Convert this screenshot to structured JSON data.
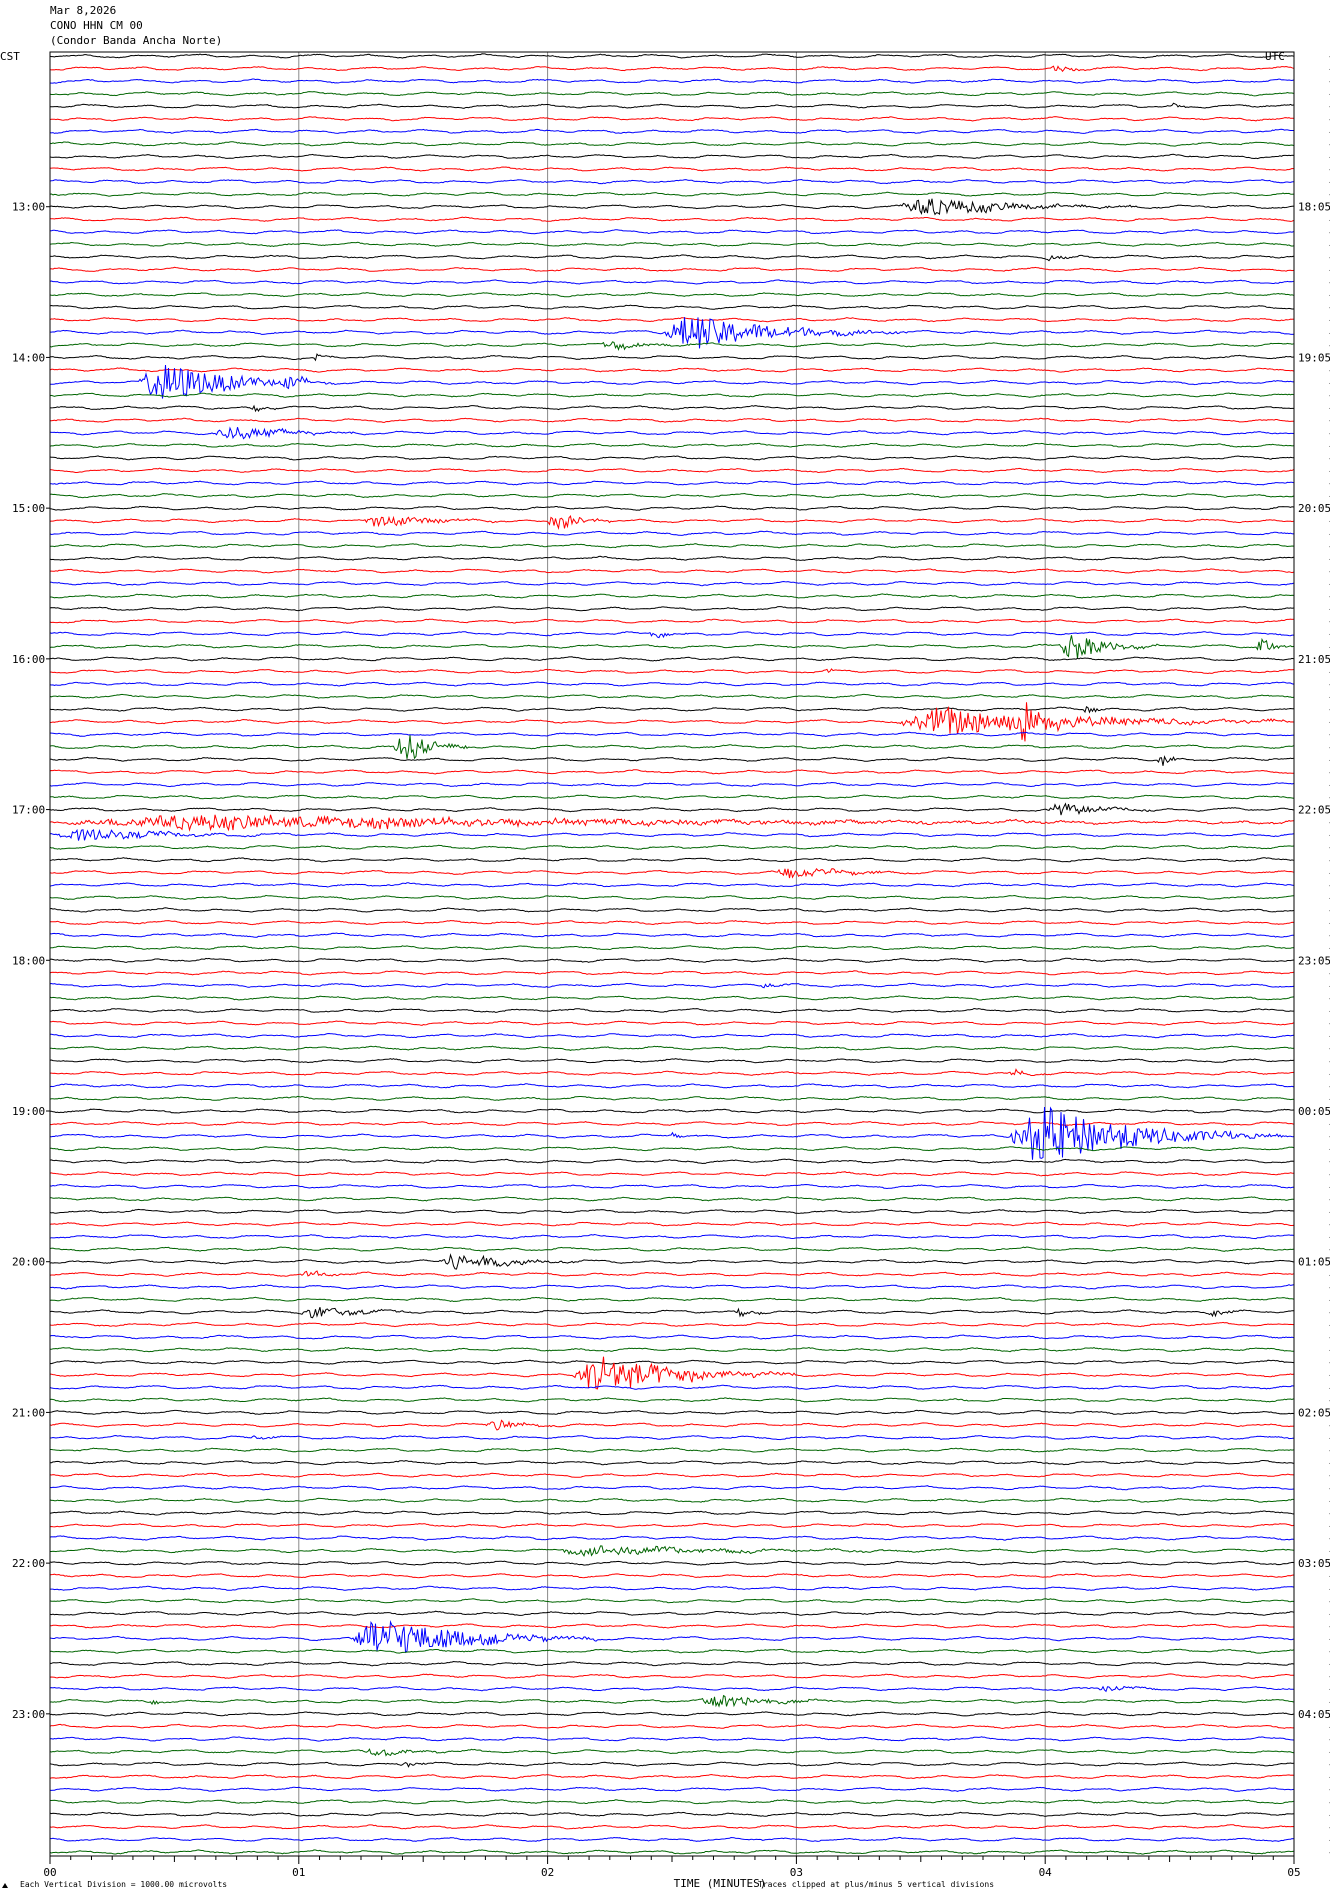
{
  "header": {
    "date": "Mar 8,2026",
    "station": "CONO HHN CM 00",
    "station_name": "(Condor Banda Ancha Norte)"
  },
  "left_zone": "CST",
  "right_zone": "UTC",
  "footer": {
    "xlabel": "TIME (MINUTES)",
    "scale_note": "Each Vertical Division = 1000.00 microvolts",
    "clip_note": "Traces clipped at plus/minus 5 vertical divisions"
  },
  "colors": {
    "cycle": [
      "#000000",
      "#ff0000",
      "#0000ff",
      "#006400"
    ],
    "grid": "#888888"
  },
  "chart_data": {
    "type": "line",
    "title": "CONO HHN CM 00",
    "xlabel": "TIME (MINUTES)",
    "xlim": [
      0,
      5
    ],
    "x_ticks": [
      "00",
      "01",
      "02",
      "03",
      "04",
      "05"
    ],
    "num_traces": 144,
    "trace_minutes": 5,
    "left_time_labels": [
      {
        "trace": 12,
        "label": "13:00"
      },
      {
        "trace": 24,
        "label": "14:00"
      },
      {
        "trace": 36,
        "label": "15:00"
      },
      {
        "trace": 48,
        "label": "16:00"
      },
      {
        "trace": 60,
        "label": "17:00"
      },
      {
        "trace": 72,
        "label": "18:00"
      },
      {
        "trace": 84,
        "label": "19:00"
      },
      {
        "trace": 96,
        "label": "20:00"
      },
      {
        "trace": 108,
        "label": "21:00"
      },
      {
        "trace": 120,
        "label": "22:00"
      },
      {
        "trace": 132,
        "label": "23:00"
      }
    ],
    "right_time_labels": [
      {
        "trace": 12,
        "label": "18:05"
      },
      {
        "trace": 24,
        "label": "19:05"
      },
      {
        "trace": 36,
        "label": "20:05"
      },
      {
        "trace": 48,
        "label": "21:05"
      },
      {
        "trace": 60,
        "label": "22:05"
      },
      {
        "trace": 72,
        "label": "23:05"
      },
      {
        "trace": 84,
        "label": "00:05"
      },
      {
        "trace": 96,
        "label": "01:05"
      },
      {
        "trace": 108,
        "label": "02:05"
      },
      {
        "trace": 120,
        "label": "03:05"
      },
      {
        "trace": 132,
        "label": "04:05"
      }
    ],
    "trace_offsets": [
      "-10584",
      "-10576",
      "-10580",
      "-10605",
      "-10605",
      "-10611",
      "-10627",
      "-10588",
      "-10660",
      "-10602",
      "-10660",
      "-10612",
      "-10611",
      "-10640",
      "-10635",
      "-10572",
      "-10598",
      "-10568",
      "-10653",
      "-10636",
      "-10633",
      "-10613",
      "-10617",
      "-10618",
      "-10620",
      "-10560",
      "-10692",
      "-10652",
      "-10629",
      "-10640",
      "-10572",
      "-10591",
      "-10705",
      "-10651",
      "-10589",
      "-10652",
      "-10646",
      "-10710",
      "-10640",
      "-10662",
      "-10648",
      "-10643",
      "-10628",
      "-10652",
      "-10688",
      "-10648",
      "-10655",
      "-10668",
      "-10664",
      "-10663",
      "-10650",
      "-10692",
      "-10798",
      "-10843",
      "-10816",
      "-10850",
      "-10833",
      "-10875",
      "-10913",
      "-10904",
      "-10635",
      "-10784",
      "-10881",
      "-10821",
      "-10790",
      "-10761",
      "-10711",
      "-10852",
      "-10819",
      "-10861",
      "-10835",
      "-10842",
      "-10835",
      "-10809",
      "-10874",
      "-10836",
      "-10833",
      "-10832",
      "-10926",
      "-10829",
      "-10890",
      "-10840",
      "-10776",
      "-10898",
      "-10876",
      "-10863",
      "-10845",
      "-10897",
      "-10882",
      "-10874",
      "-10894",
      "-10889",
      "-10877",
      "-10882",
      "-10896",
      "-10894",
      "-10901",
      "-10886",
      "-10889",
      "-10908",
      "-10895",
      "-10880",
      "-10898",
      "-10903",
      "-10892",
      "-10918",
      "-10917",
      "-10893",
      "-10888",
      "-10938",
      "-10939",
      "-10938",
      "-10951",
      "-10949",
      "-10940",
      "-10918",
      "-10907",
      "-10868",
      "-10930",
      "-10923",
      "-10921",
      "-10918",
      "-10908",
      "-10895",
      "-10922",
      "-10931",
      "-10971",
      "-11024",
      "-10942",
      "-10933",
      "-10977",
      "-10962",
      "-10945",
      "-10941",
      "-10913",
      "-10908",
      "-10869",
      "-10880",
      "-10045",
      "-10868",
      "-10835",
      "-10788",
      "-10881",
      "-10854"
    ],
    "events": [
      {
        "trace": 1,
        "start_min": 4.0,
        "duration_min": 0.3,
        "amp_div": 0.5
      },
      {
        "trace": 4,
        "start_min": 4.5,
        "duration_min": 0.1,
        "amp_div": 0.4
      },
      {
        "trace": 12,
        "start_min": 3.4,
        "duration_min": 1.0,
        "amp_div": 1.5
      },
      {
        "trace": 16,
        "start_min": 4.0,
        "duration_min": 0.2,
        "amp_div": 0.5
      },
      {
        "trace": 22,
        "start_min": 2.45,
        "duration_min": 1.0,
        "amp_div": 3.0
      },
      {
        "trace": 23,
        "start_min": 2.2,
        "duration_min": 0.4,
        "amp_div": 0.8
      },
      {
        "trace": 24,
        "start_min": 1.05,
        "duration_min": 0.1,
        "amp_div": 0.8
      },
      {
        "trace": 26,
        "start_min": 0.35,
        "duration_min": 0.8,
        "amp_div": 3.5
      },
      {
        "trace": 26,
        "start_min": 0.93,
        "duration_min": 0.2,
        "amp_div": 1.5
      },
      {
        "trace": 28,
        "start_min": 0.8,
        "duration_min": 0.2,
        "amp_div": 0.5
      },
      {
        "trace": 30,
        "start_min": 0.65,
        "duration_min": 0.6,
        "amp_div": 1.2
      },
      {
        "trace": 37,
        "start_min": 1.25,
        "duration_min": 0.6,
        "amp_div": 1.0
      },
      {
        "trace": 37,
        "start_min": 2.0,
        "duration_min": 0.25,
        "amp_div": 2.0
      },
      {
        "trace": 46,
        "start_min": 2.4,
        "duration_min": 0.2,
        "amp_div": 0.5
      },
      {
        "trace": 47,
        "start_min": 4.05,
        "duration_min": 0.4,
        "amp_div": 2.5
      },
      {
        "trace": 47,
        "start_min": 4.85,
        "duration_min": 0.15,
        "amp_div": 2.0
      },
      {
        "trace": 49,
        "start_min": 3.12,
        "duration_min": 0.05,
        "amp_div": 0.6
      },
      {
        "trace": 52,
        "start_min": 4.15,
        "duration_min": 0.1,
        "amp_div": 0.7
      },
      {
        "trace": 53,
        "start_min": 3.4,
        "duration_min": 1.6,
        "amp_div": 2.5
      },
      {
        "trace": 53,
        "start_min": 3.88,
        "duration_min": 0.25,
        "amp_div": 4.0
      },
      {
        "trace": 55,
        "start_min": 1.38,
        "duration_min": 0.3,
        "amp_div": 3.0
      },
      {
        "trace": 56,
        "start_min": 4.45,
        "duration_min": 0.1,
        "amp_div": 1.5
      },
      {
        "trace": 60,
        "start_min": 4.0,
        "duration_min": 0.5,
        "amp_div": 1.0
      },
      {
        "trace": 61,
        "start_min": 0.0,
        "duration_min": 5.0,
        "amp_div": 1.2
      },
      {
        "trace": 61,
        "start_min": 1.3,
        "duration_min": 0.1,
        "amp_div": 2.5
      },
      {
        "trace": 62,
        "start_min": 0.0,
        "duration_min": 1.0,
        "amp_div": 1.0
      },
      {
        "trace": 65,
        "start_min": 2.9,
        "duration_min": 0.6,
        "amp_div": 1.0
      },
      {
        "trace": 74,
        "start_min": 2.85,
        "duration_min": 0.2,
        "amp_div": 0.5
      },
      {
        "trace": 81,
        "start_min": 3.85,
        "duration_min": 0.2,
        "amp_div": 0.6
      },
      {
        "trace": 86,
        "start_min": 3.85,
        "duration_min": 1.1,
        "amp_div": 5.0
      },
      {
        "trace": 86,
        "start_min": 2.48,
        "duration_min": 0.15,
        "amp_div": 0.7
      },
      {
        "trace": 96,
        "start_min": 1.55,
        "duration_min": 0.6,
        "amp_div": 1.5
      },
      {
        "trace": 97,
        "start_min": 1.0,
        "duration_min": 0.3,
        "amp_div": 0.5
      },
      {
        "trace": 100,
        "start_min": 1.0,
        "duration_min": 0.5,
        "amp_div": 1.0
      },
      {
        "trace": 100,
        "start_min": 2.75,
        "duration_min": 0.2,
        "amp_div": 0.7
      },
      {
        "trace": 100,
        "start_min": 4.65,
        "duration_min": 0.2,
        "amp_div": 0.6
      },
      {
        "trace": 105,
        "start_min": 2.1,
        "duration_min": 0.9,
        "amp_div": 3.5
      },
      {
        "trace": 109,
        "start_min": 1.75,
        "duration_min": 0.3,
        "amp_div": 1.0
      },
      {
        "trace": 110,
        "start_min": 0.8,
        "duration_min": 0.2,
        "amp_div": 0.4
      },
      {
        "trace": 119,
        "start_min": 2.0,
        "duration_min": 1.5,
        "amp_div": 0.8
      },
      {
        "trace": 126,
        "start_min": 1.2,
        "duration_min": 1.0,
        "amp_div": 3.5
      },
      {
        "trace": 130,
        "start_min": 4.2,
        "duration_min": 0.3,
        "amp_div": 0.5
      },
      {
        "trace": 131,
        "start_min": 0.4,
        "duration_min": 0.1,
        "amp_div": 0.6
      },
      {
        "trace": 131,
        "start_min": 2.6,
        "duration_min": 0.6,
        "amp_div": 1.2
      },
      {
        "trace": 135,
        "start_min": 1.25,
        "duration_min": 0.4,
        "amp_div": 0.6
      },
      {
        "trace": 136,
        "start_min": 1.4,
        "duration_min": 0.2,
        "amp_div": 0.4
      }
    ]
  }
}
